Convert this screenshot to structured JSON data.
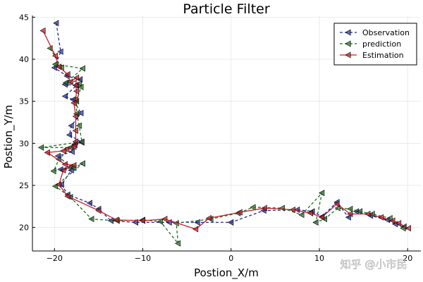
{
  "watermark": "知乎 @小市民",
  "chart_data": {
    "type": "line",
    "title": "Particle Filter",
    "xlabel": "Postion_X/m",
    "ylabel": "Postion_Y/m",
    "xlim": [
      -22.5,
      21.5
    ],
    "ylim": [
      17.2,
      45.2
    ],
    "xticks": [
      -20,
      -10,
      0,
      10,
      20
    ],
    "yticks": [
      20,
      25,
      30,
      35,
      40,
      45
    ],
    "xtick_labels": [
      "−20",
      "−10",
      "0",
      "10",
      "20"
    ],
    "ytick_labels": [
      "20",
      "25",
      "30",
      "35",
      "40",
      "45"
    ],
    "grid": true,
    "legend_position": "top-right",
    "series": [
      {
        "name": "Observation",
        "color": "#1f2a9c",
        "dash": "dashed",
        "marker": "triangle-left",
        "points": [
          [
            -19.8,
            44.3
          ],
          [
            -19.3,
            40.9
          ],
          [
            -20.0,
            39.0
          ],
          [
            -18.6,
            38.0
          ],
          [
            -17.1,
            37.6
          ],
          [
            -18.8,
            37.0
          ],
          [
            -17.5,
            36.9
          ],
          [
            -18.8,
            35.6
          ],
          [
            -17.9,
            35.2
          ],
          [
            -17.0,
            33.6
          ],
          [
            -18.1,
            32.1
          ],
          [
            -18.3,
            31.0
          ],
          [
            -16.9,
            30.1
          ],
          [
            -17.7,
            29.9
          ],
          [
            -18.0,
            29.0
          ],
          [
            -19.6,
            28.5
          ],
          [
            -18.2,
            27.2
          ],
          [
            -19.3,
            26.9
          ],
          [
            -18.1,
            26.8
          ],
          [
            -19.2,
            25.1
          ],
          [
            -18.5,
            23.9
          ],
          [
            -16.0,
            22.9
          ],
          [
            -15.0,
            22.2
          ],
          [
            -13.6,
            20.8
          ],
          [
            -10.8,
            20.6
          ],
          [
            -7.0,
            20.6
          ],
          [
            -3.8,
            20.6
          ],
          [
            0.0,
            20.6
          ],
          [
            3.7,
            22.0
          ],
          [
            7.5,
            22.1
          ],
          [
            9.2,
            21.9
          ],
          [
            10.3,
            21.3
          ],
          [
            12.0,
            23.0
          ],
          [
            13.3,
            21.2
          ],
          [
            14.2,
            21.9
          ],
          [
            15.8,
            21.4
          ],
          [
            17.7,
            20.9
          ],
          [
            18.6,
            20.4
          ],
          [
            19.6,
            20.1
          ]
        ]
      },
      {
        "name": "prediction",
        "color": "#1f6f1f",
        "dash": "dashed",
        "marker": "triangle-left",
        "points": [
          [
            -20.5,
            41.3
          ],
          [
            -19.2,
            39.0
          ],
          [
            -19.9,
            39.4
          ],
          [
            -16.8,
            38.9
          ],
          [
            -18.7,
            37.2
          ],
          [
            -17.2,
            37.1
          ],
          [
            -17.0,
            36.7
          ],
          [
            -17.5,
            35.0
          ],
          [
            -17.5,
            33.5
          ],
          [
            -17.2,
            32.1
          ],
          [
            -16.9,
            30.2
          ],
          [
            -21.5,
            29.5
          ],
          [
            -18.2,
            29.5
          ],
          [
            -19.5,
            28.1
          ],
          [
            -20.1,
            26.7
          ],
          [
            -17.8,
            27.1
          ],
          [
            -16.8,
            27.6
          ],
          [
            -19.9,
            24.9
          ],
          [
            -18.2,
            23.6
          ],
          [
            -15.8,
            21.0
          ],
          [
            -12.9,
            20.8
          ],
          [
            -10.0,
            20.9
          ],
          [
            -8.0,
            20.7
          ],
          [
            -6.0,
            18.1
          ],
          [
            -6.2,
            20.5
          ],
          [
            -2.3,
            21.0
          ],
          [
            0.8,
            21.7
          ],
          [
            2.5,
            22.4
          ],
          [
            5.8,
            22.3
          ],
          [
            8.0,
            21.5
          ],
          [
            10.3,
            24.1
          ],
          [
            9.6,
            20.6
          ],
          [
            10.6,
            21.0
          ],
          [
            12.1,
            22.3
          ],
          [
            13.5,
            22.2
          ],
          [
            14.6,
            21.9
          ],
          [
            16.0,
            21.6
          ],
          [
            18.0,
            21.1
          ],
          [
            19.5,
            19.9
          ]
        ]
      },
      {
        "name": "Estimation",
        "color": "#c81e28",
        "dash": "solid",
        "marker": "triangle-left",
        "points": [
          [
            -21.3,
            43.4
          ],
          [
            -19.9,
            40.4
          ],
          [
            -19.5,
            39.1
          ],
          [
            -18.5,
            38.2
          ],
          [
            -18.2,
            37.3
          ],
          [
            -17.5,
            37.8
          ],
          [
            -17.6,
            36.9
          ],
          [
            -17.5,
            36.2
          ],
          [
            -17.6,
            35.2
          ],
          [
            -17.8,
            34.8
          ],
          [
            -17.6,
            33.2
          ],
          [
            -17.6,
            31.5
          ],
          [
            -17.6,
            30.2
          ],
          [
            -17.7,
            29.8
          ],
          [
            -17.8,
            29.6
          ],
          [
            -18.6,
            29.3
          ],
          [
            -19.0,
            29.1
          ],
          [
            -20.8,
            28.9
          ],
          [
            -18.8,
            27.5
          ],
          [
            -17.8,
            27.4
          ],
          [
            -19.0,
            26.8
          ],
          [
            -19.5,
            25.1
          ],
          [
            -18.5,
            23.7
          ],
          [
            -15.0,
            22.0
          ],
          [
            -13.0,
            20.9
          ],
          [
            -10.0,
            20.8
          ],
          [
            -7.5,
            21.0
          ],
          [
            -4.0,
            19.8
          ],
          [
            -2.5,
            21.1
          ],
          [
            1.0,
            21.8
          ],
          [
            3.8,
            22.3
          ],
          [
            7.0,
            22.1
          ],
          [
            9.0,
            21.7
          ],
          [
            10.3,
            21.2
          ],
          [
            12.0,
            22.8
          ],
          [
            13.5,
            21.6
          ],
          [
            15.5,
            21.6
          ],
          [
            17.0,
            21.2
          ],
          [
            18.3,
            20.8
          ],
          [
            19.0,
            20.5
          ],
          [
            20.1,
            19.9
          ]
        ]
      }
    ]
  }
}
